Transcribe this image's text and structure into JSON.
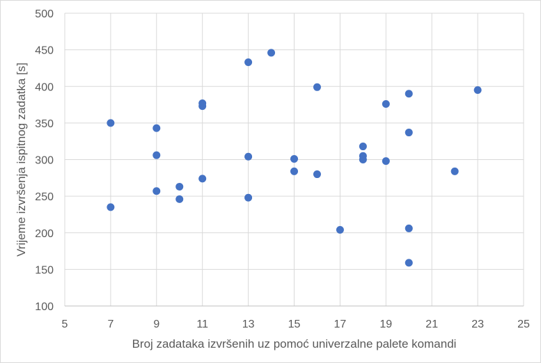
{
  "chart_data": {
    "type": "scatter",
    "title": "",
    "xlabel": "Broj zadataka izvršenih uz pomoć univerzalne palete komandi",
    "ylabel": "Vrijeme izvršenja ispitnog zadatka [s]",
    "xlim": [
      5,
      25
    ],
    "ylim": [
      100,
      500
    ],
    "x_ticks": [
      5,
      7,
      9,
      11,
      13,
      15,
      17,
      19,
      21,
      23,
      25
    ],
    "y_ticks": [
      100,
      150,
      200,
      250,
      300,
      350,
      400,
      450,
      500
    ],
    "grid": true,
    "legend": "none",
    "marker_color": "#4472C4",
    "series": [
      {
        "points": [
          {
            "x": 7,
            "y": 350
          },
          {
            "x": 7,
            "y": 235
          },
          {
            "x": 9,
            "y": 343
          },
          {
            "x": 9,
            "y": 306
          },
          {
            "x": 9,
            "y": 257
          },
          {
            "x": 10,
            "y": 263
          },
          {
            "x": 10,
            "y": 246
          },
          {
            "x": 11,
            "y": 377
          },
          {
            "x": 11,
            "y": 373
          },
          {
            "x": 11,
            "y": 274
          },
          {
            "x": 13,
            "y": 433
          },
          {
            "x": 13,
            "y": 304
          },
          {
            "x": 13,
            "y": 248
          },
          {
            "x": 14,
            "y": 446
          },
          {
            "x": 15,
            "y": 301
          },
          {
            "x": 15,
            "y": 284
          },
          {
            "x": 16,
            "y": 399
          },
          {
            "x": 16,
            "y": 280
          },
          {
            "x": 17,
            "y": 204
          },
          {
            "x": 18,
            "y": 318
          },
          {
            "x": 18,
            "y": 305
          },
          {
            "x": 18,
            "y": 300
          },
          {
            "x": 19,
            "y": 376
          },
          {
            "x": 19,
            "y": 298
          },
          {
            "x": 20,
            "y": 390
          },
          {
            "x": 20,
            "y": 337
          },
          {
            "x": 20,
            "y": 206
          },
          {
            "x": 20,
            "y": 159
          },
          {
            "x": 22,
            "y": 284
          },
          {
            "x": 23,
            "y": 395
          }
        ]
      }
    ]
  }
}
